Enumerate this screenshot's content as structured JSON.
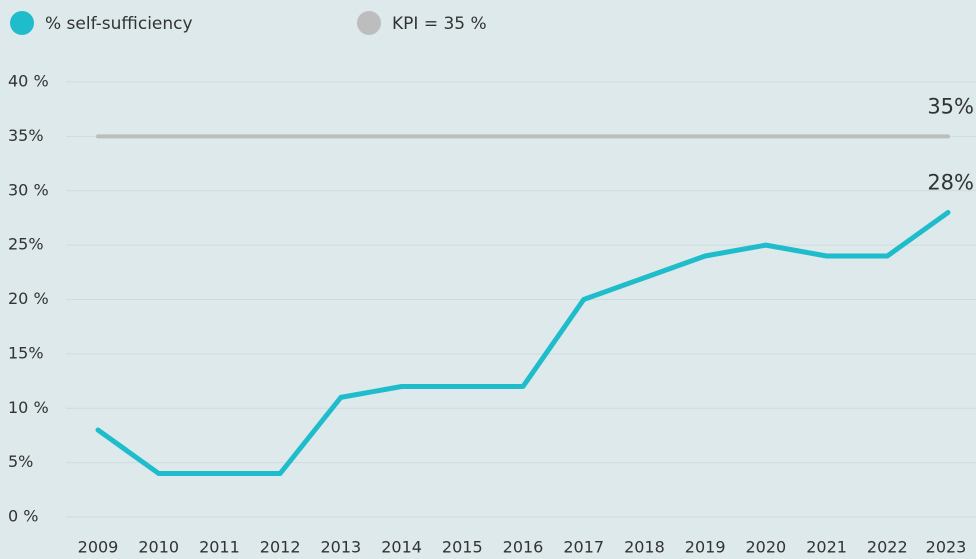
{
  "chart_data": {
    "type": "line",
    "categories": [
      "2009",
      "2010",
      "2011",
      "2012",
      "2013",
      "2014",
      "2015",
      "2016",
      "2017",
      "2018",
      "2019",
      "2020",
      "2021",
      "2022",
      "2023"
    ],
    "series": [
      {
        "name": "% self-sufficiency",
        "color": "#1fbccc",
        "values": [
          8,
          4,
          4,
          4,
          11,
          12,
          12,
          12,
          20,
          22,
          24,
          25,
          24,
          24,
          28
        ],
        "value_labels": [
          null,
          null,
          null,
          null,
          null,
          null,
          null,
          null,
          null,
          null,
          null,
          null,
          null,
          null,
          "28%"
        ]
      },
      {
        "name": "KPI = 35 %",
        "color": "#bdbdbd",
        "values": [
          35,
          35,
          35,
          35,
          35,
          35,
          35,
          35,
          35,
          35,
          35,
          35,
          35,
          35,
          35
        ],
        "value_labels": [
          null,
          null,
          null,
          null,
          null,
          null,
          null,
          null,
          null,
          null,
          null,
          null,
          null,
          null,
          "35%"
        ]
      }
    ],
    "ylim": [
      0,
      40
    ],
    "yticks": [
      {
        "value": 0,
        "label": "0 %"
      },
      {
        "value": 5,
        "label": "5%"
      },
      {
        "value": 10,
        "label": "10 %"
      },
      {
        "value": 15,
        "label": "15%"
      },
      {
        "value": 20,
        "label": "20 %"
      },
      {
        "value": 25,
        "label": "25%"
      },
      {
        "value": 30,
        "label": "30 %"
      },
      {
        "value": 35,
        "label": "35%"
      },
      {
        "value": 40,
        "label": "40 %"
      }
    ],
    "grid": true
  }
}
